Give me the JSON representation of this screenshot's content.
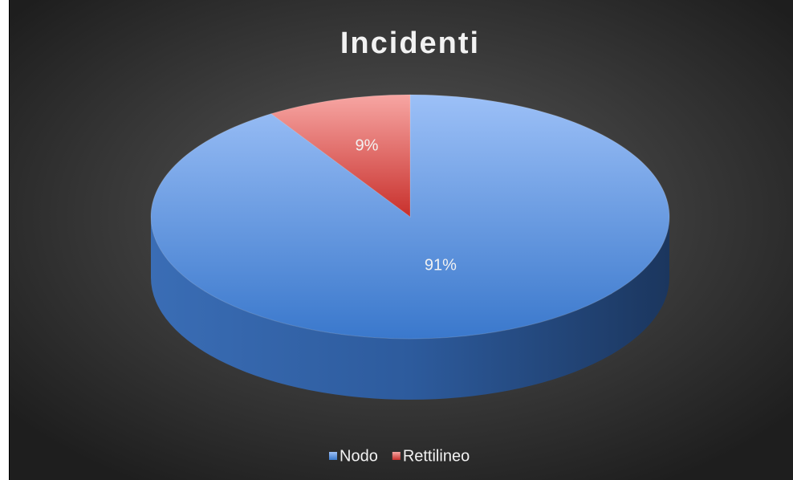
{
  "chart_data": {
    "type": "pie",
    "title": "Incidenti",
    "categories": [
      "Nodo",
      "Rettilineo"
    ],
    "values": [
      91,
      9
    ],
    "value_labels": [
      "91%",
      "9%"
    ],
    "colors": [
      "#4f86d6",
      "#d9413e"
    ],
    "legend": "bottom"
  }
}
